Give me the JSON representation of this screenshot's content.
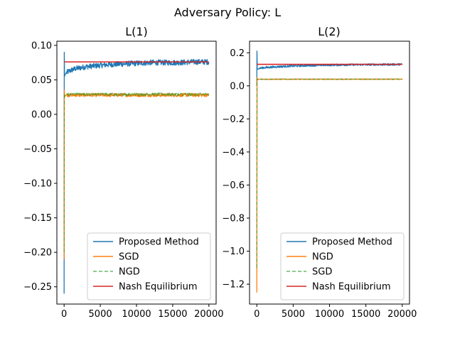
{
  "figure_title": "Adversary Policy: L",
  "chart_data": [
    {
      "type": "line",
      "title": "L(1)",
      "xlabel": "",
      "ylabel": "",
      "xlim": [
        -1000,
        21000
      ],
      "ylim": [
        -0.275,
        0.106
      ],
      "x_ticks": [
        0,
        5000,
        10000,
        15000,
        20000
      ],
      "x_tick_labels": [
        "0",
        "5000",
        "10000",
        "15000",
        "20000"
      ],
      "y_ticks": [
        0.1,
        0.05,
        0.0,
        -0.05,
        -0.1,
        -0.15,
        -0.2,
        -0.25
      ],
      "y_tick_labels": [
        "0.10",
        "0.05",
        "0.00",
        "−0.05",
        "−0.10",
        "−0.15",
        "−0.20",
        "−0.25"
      ],
      "legend_position": "lower-right",
      "grid": false,
      "series": [
        {
          "name": "Proposed Method",
          "color": "#1f77b4",
          "style": "solid",
          "x": [
            0,
            20,
            60,
            150,
            300,
            600,
            1000,
            1500,
            2000,
            3000,
            4000,
            5000,
            6000,
            8000,
            10000,
            12000,
            14000,
            16000,
            18000,
            20000
          ],
          "y": [
            -0.26,
            0.09,
            0.055,
            0.058,
            0.06,
            0.062,
            0.064,
            0.066,
            0.067,
            0.069,
            0.07,
            0.071,
            0.072,
            0.073,
            0.074,
            0.075,
            0.075,
            0.075,
            0.076,
            0.076
          ],
          "noise": 0.004
        },
        {
          "name": "SGD",
          "color": "#ff7f0e",
          "style": "solid",
          "x": [
            0,
            30,
            80,
            150,
            300,
            600,
            1000,
            2000,
            5000,
            10000,
            15000,
            20000
          ],
          "y": [
            -0.21,
            0.035,
            0.025,
            0.027,
            0.028,
            0.028,
            0.028,
            0.028,
            0.028,
            0.028,
            0.028,
            0.028
          ],
          "noise": 0.0025
        },
        {
          "name": "NGD",
          "color": "#2ca02c",
          "style": "dashed",
          "x": [
            0,
            30,
            80,
            150,
            300,
            600,
            1000,
            2000,
            5000,
            10000,
            15000,
            20000
          ],
          "y": [
            -0.2,
            0.03,
            0.026,
            0.028,
            0.029,
            0.029,
            0.029,
            0.029,
            0.029,
            0.029,
            0.029,
            0.029
          ],
          "noise": 0.002
        },
        {
          "name": "Nash Equilibrium",
          "color": "#d62728",
          "style": "solid",
          "x": [
            0,
            20000
          ],
          "y": [
            0.076,
            0.076
          ],
          "noise": 0
        }
      ]
    },
    {
      "type": "line",
      "title": "L(2)",
      "xlabel": "",
      "ylabel": "",
      "xlim": [
        -1000,
        21000
      ],
      "ylim": [
        -1.32,
        0.27
      ],
      "x_ticks": [
        0,
        5000,
        10000,
        15000,
        20000
      ],
      "x_tick_labels": [
        "0",
        "5000",
        "10000",
        "15000",
        "20000"
      ],
      "y_ticks": [
        0.2,
        0.0,
        -0.2,
        -0.4,
        -0.6,
        -0.8,
        -1.0,
        -1.2
      ],
      "y_tick_labels": [
        "0.2",
        "0.0",
        "−0.2",
        "−0.4",
        "−0.6",
        "−0.8",
        "−1.0",
        "−1.2"
      ],
      "legend_position": "lower-right",
      "grid": false,
      "series": [
        {
          "name": "Proposed Method",
          "color": "#1f77b4",
          "style": "solid",
          "x": [
            0,
            20,
            60,
            150,
            300,
            600,
            1000,
            2000,
            3000,
            5000,
            8000,
            10000,
            14000,
            18000,
            20000
          ],
          "y": [
            0.0,
            0.21,
            0.1,
            0.1,
            0.105,
            0.108,
            0.11,
            0.113,
            0.116,
            0.12,
            0.124,
            0.126,
            0.128,
            0.129,
            0.13
          ],
          "noise": 0.006
        },
        {
          "name": "NGD",
          "color": "#ff7f0e",
          "style": "solid",
          "x": [
            0,
            30,
            80,
            150,
            300,
            600,
            1000,
            2000,
            5000,
            10000,
            15000,
            20000
          ],
          "y": [
            -1.25,
            0.05,
            0.035,
            0.04,
            0.04,
            0.04,
            0.04,
            0.04,
            0.04,
            0.04,
            0.04,
            0.04
          ],
          "noise": 0.002
        },
        {
          "name": "SGD",
          "color": "#2ca02c",
          "style": "dashed",
          "x": [
            0,
            30,
            80,
            150,
            300,
            600,
            1000,
            2000,
            5000,
            10000,
            15000,
            20000
          ],
          "y": [
            -1.1,
            0.04,
            0.035,
            0.04,
            0.04,
            0.04,
            0.04,
            0.04,
            0.04,
            0.04,
            0.04,
            0.04
          ],
          "noise": 0.0015
        },
        {
          "name": "Nash Equilibrium",
          "color": "#d62728",
          "style": "solid",
          "x": [
            0,
            20000
          ],
          "y": [
            0.13,
            0.13
          ],
          "noise": 0
        }
      ]
    }
  ]
}
